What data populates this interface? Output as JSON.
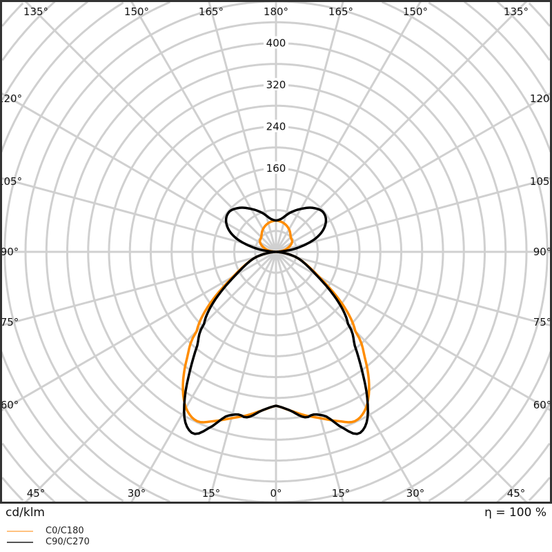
{
  "chart_data": {
    "type": "polar",
    "unit_label": "cd/klm",
    "efficiency_label": "η = 100 %",
    "radial_ticks": [
      160,
      240,
      320,
      400
    ],
    "radial_grid_step": 40,
    "angle_labels_top": [
      "135°",
      "150°",
      "165°",
      "180°",
      "165°",
      "150°",
      "135°"
    ],
    "angle_labels_side": [
      "120°",
      "105°",
      "90°",
      "75°",
      "60°"
    ],
    "angle_labels_bottom": [
      "45°",
      "30°",
      "15°",
      "0°",
      "15°",
      "30°",
      "45°"
    ],
    "grid": true,
    "series": [
      {
        "name": "C0/C180",
        "color": "#ff8c00",
        "legend_color": "#ffc280",
        "angles": [
          0,
          5,
          10,
          15,
          20,
          25,
          30,
          35,
          40,
          45,
          60,
          75,
          90,
          100,
          120,
          135,
          150,
          165,
          180
        ],
        "values": [
          295,
          305,
          318,
          330,
          345,
          358,
          345,
          311,
          265,
          215,
          95,
          40,
          0,
          15,
          35,
          40,
          50,
          57,
          60
        ]
      },
      {
        "name": "C90/C270",
        "color": "#000000",
        "legend_color": "#555555",
        "angles": [
          0,
          5,
          10,
          13,
          17,
          20,
          24,
          28,
          32,
          36,
          40,
          45,
          60,
          75,
          90,
          100,
          110,
          120,
          130,
          140,
          150,
          160,
          170,
          180
        ],
        "values": [
          295,
          305,
          322,
          320,
          330,
          355,
          382,
          370,
          330,
          280,
          235,
          195,
          90,
          40,
          0,
          40,
          85,
          110,
          118,
          110,
          95,
          80,
          65,
          60
        ]
      }
    ]
  }
}
